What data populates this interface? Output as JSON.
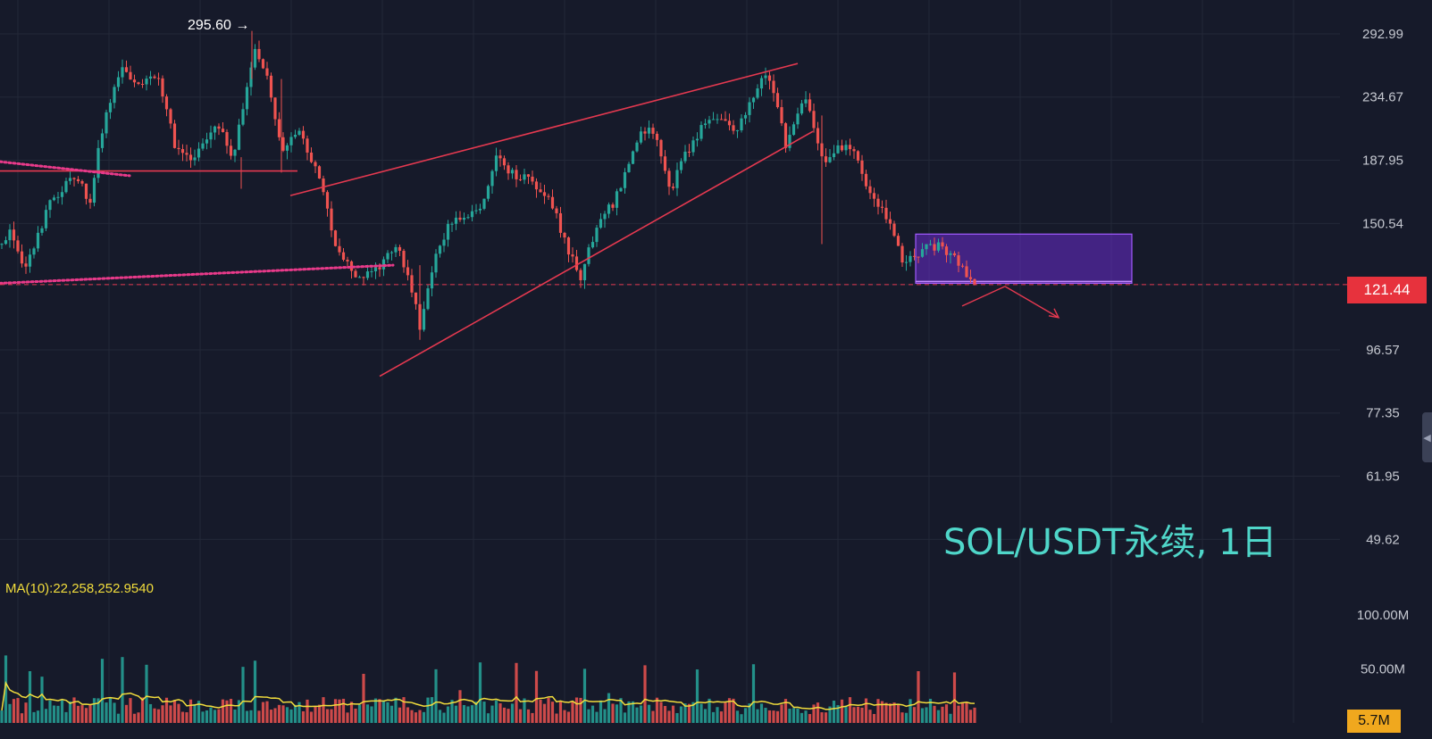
{
  "chart_data": {
    "type": "candlestick",
    "title": "SOL/USDT永续, 1日",
    "high_marker": "295.60 →",
    "last_price": "121.44",
    "price_axis": {
      "scale": "log",
      "range": [
        43,
        330
      ],
      "ticks": [
        "292.99",
        "234.67",
        "187.95",
        "150.54",
        "121.44",
        "96.57",
        "77.35",
        "61.95",
        "49.62"
      ]
    },
    "volume_axis": {
      "range": [
        0,
        120
      ],
      "unit": "M",
      "ticks": [
        "100.00M",
        "50.00M"
      ],
      "current_volume": "5.7M"
    },
    "ma_indicator": "MA(10):22,258,252.9540",
    "price_path_anchors": [
      [
        0,
        140
      ],
      [
        12,
        148
      ],
      [
        28,
        128
      ],
      [
        55,
        160
      ],
      [
        85,
        180
      ],
      [
        100,
        160
      ],
      [
        115,
        210
      ],
      [
        135,
        260
      ],
      [
        155,
        245
      ],
      [
        175,
        255
      ],
      [
        195,
        200
      ],
      [
        215,
        185
      ],
      [
        240,
        215
      ],
      [
        262,
        190
      ],
      [
        285,
        275
      ],
      [
        300,
        250
      ],
      [
        315,
        195
      ],
      [
        335,
        205
      ],
      [
        355,
        180
      ],
      [
        375,
        140
      ],
      [
        395,
        125
      ],
      [
        410,
        125
      ],
      [
        425,
        130
      ],
      [
        445,
        140
      ],
      [
        460,
        120
      ],
      [
        470,
        105
      ],
      [
        485,
        130
      ],
      [
        500,
        148
      ],
      [
        520,
        155
      ],
      [
        540,
        160
      ],
      [
        555,
        190
      ],
      [
        575,
        178
      ],
      [
        595,
        175
      ],
      [
        615,
        165
      ],
      [
        635,
        138
      ],
      [
        650,
        125
      ],
      [
        665,
        145
      ],
      [
        690,
        165
      ],
      [
        705,
        185
      ],
      [
        720,
        210
      ],
      [
        735,
        205
      ],
      [
        750,
        168
      ],
      [
        770,
        195
      ],
      [
        790,
        215
      ],
      [
        805,
        220
      ],
      [
        825,
        210
      ],
      [
        840,
        228
      ],
      [
        855,
        255
      ],
      [
        870,
        232
      ],
      [
        880,
        192
      ],
      [
        890,
        220
      ],
      [
        900,
        235
      ],
      [
        915,
        200
      ],
      [
        925,
        185
      ],
      [
        945,
        200
      ],
      [
        960,
        190
      ],
      [
        970,
        170
      ],
      [
        980,
        165
      ],
      [
        995,
        150
      ],
      [
        1010,
        132
      ],
      [
        1025,
        135
      ],
      [
        1040,
        140
      ],
      [
        1055,
        138
      ],
      [
        1070,
        133
      ],
      [
        1085,
        122
      ],
      [
        1092,
        121.44
      ]
    ],
    "range_box": {
      "price_high": 145,
      "price_low": 122,
      "color": "#7b2ff0"
    },
    "support_line_price": 121.44,
    "trendlines": [
      {
        "style": "solid",
        "from": [
          325,
          166
        ],
        "to": [
          893,
          264
        ]
      },
      {
        "style": "solid",
        "from": [
          425,
          88
        ],
        "to": [
          910,
          208
        ]
      },
      {
        "style": "solid",
        "from": [
          0,
          181
        ],
        "to": [
          333,
          181
        ]
      },
      {
        "style": "dotted",
        "from": [
          0,
          187
        ],
        "to": [
          145,
          178
        ]
      },
      {
        "style": "dotted",
        "from": [
          0,
          122
        ],
        "to": [
          440,
          130
        ]
      }
    ],
    "colors": {
      "up": "#26a69a",
      "down": "#ef5350",
      "ma": "#f2dd3c",
      "trendline": "#e53950",
      "dotted": "#e93a8a",
      "box": "#7b2ff0",
      "grid": "#232838",
      "background": "#161a2a"
    }
  }
}
